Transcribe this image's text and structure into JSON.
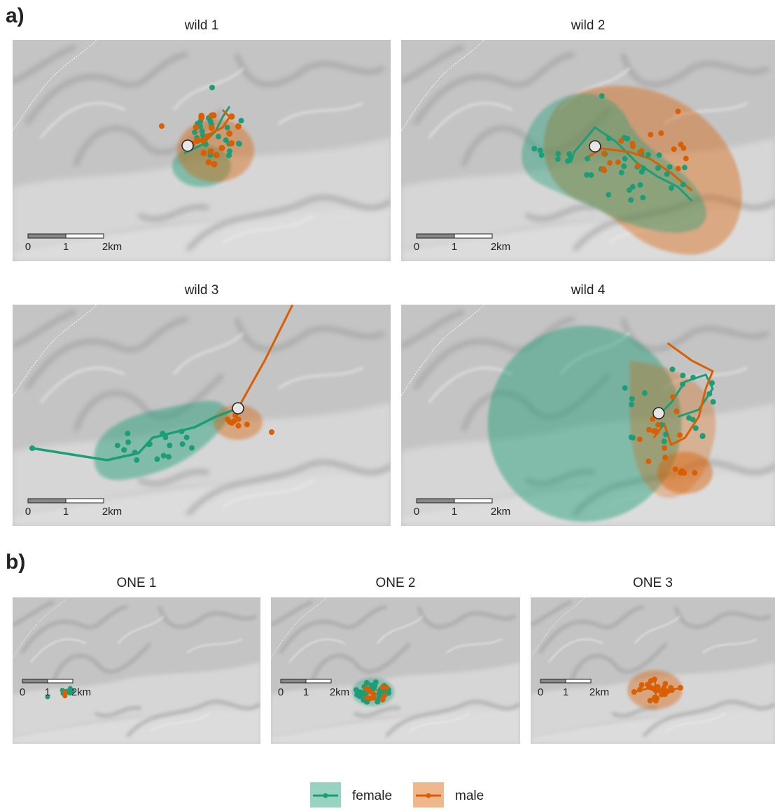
{
  "section_a": {
    "label": "a)",
    "panels": [
      {
        "title": "wild 1",
        "scale": [
          "0",
          "1",
          "2km"
        ]
      },
      {
        "title": "wild 2",
        "scale": [
          "0",
          "1",
          "2km"
        ]
      },
      {
        "title": "wild 3",
        "scale": [
          "0",
          "1",
          "2km"
        ]
      },
      {
        "title": "wild 4",
        "scale": [
          "0",
          "1",
          "2km"
        ]
      }
    ]
  },
  "section_b": {
    "label": "b)",
    "panels": [
      {
        "title": "ONE 1",
        "scale": [
          "0",
          "1",
          "2km"
        ]
      },
      {
        "title": "ONE 2",
        "scale": [
          "0",
          "1",
          "2km"
        ]
      },
      {
        "title": "ONE 3",
        "scale": [
          "0",
          "1",
          "2km"
        ]
      }
    ]
  },
  "legend": [
    {
      "label": "female",
      "color": "#1b9e77"
    },
    {
      "label": "male",
      "color": "#d95f02"
    }
  ]
}
